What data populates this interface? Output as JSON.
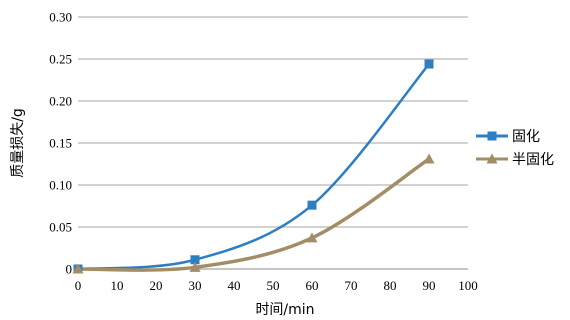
{
  "chart_data": {
    "type": "line",
    "xlabel": "时间/min",
    "ylabel": "质量损失/g",
    "xlim": [
      0,
      100
    ],
    "ylim": [
      0,
      0.3
    ],
    "xticks": [
      0,
      10,
      20,
      30,
      40,
      50,
      60,
      70,
      80,
      90,
      100
    ],
    "yticks": [
      0,
      0.05,
      0.1,
      0.15,
      0.2,
      0.25,
      0.3
    ],
    "xtick_labels": [
      "0",
      "10",
      "20",
      "30",
      "40",
      "50",
      "60",
      "70",
      "80",
      "90",
      "100"
    ],
    "ytick_labels": [
      "0",
      "0.05",
      "0.10",
      "0.15",
      "0.20",
      "0.25",
      "0.30"
    ],
    "grid": "horizontal",
    "legend_position": "right",
    "series": [
      {
        "name": "固化",
        "color": "#2e7ec4",
        "marker": "square",
        "x": [
          0,
          30,
          60,
          90
        ],
        "y": [
          0,
          0.011,
          0.076,
          0.244
        ]
      },
      {
        "name": "半固化",
        "color": "#a38d66",
        "marker": "triangle",
        "x": [
          0,
          30,
          60,
          90
        ],
        "y": [
          0,
          0.002,
          0.037,
          0.131
        ]
      }
    ]
  }
}
